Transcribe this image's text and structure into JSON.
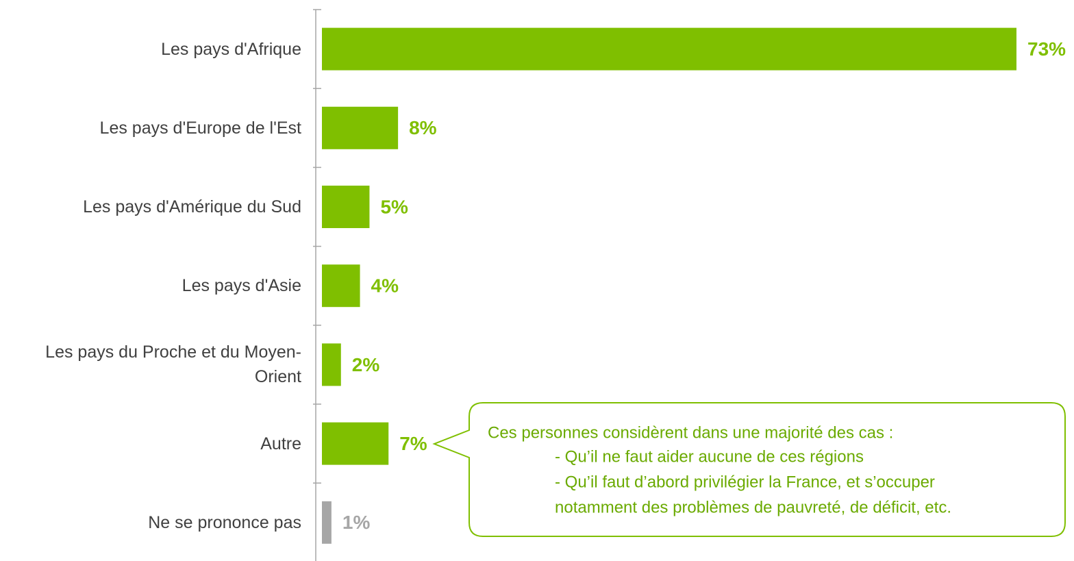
{
  "chart_data": {
    "type": "barh",
    "categories": [
      "Les pays d'Afrique",
      "Les pays d'Europe de l'Est",
      "Les pays d'Amérique du Sud",
      "Les pays d'Asie",
      "Les pays du Proche et du Moyen-Orient",
      "Autre",
      "Ne se prononce pas"
    ],
    "values": [
      73,
      8,
      5,
      4,
      2,
      7,
      1
    ],
    "value_labels": [
      "73%",
      "8%",
      "5%",
      "4%",
      "2%",
      "7%",
      "1%"
    ],
    "colors": [
      "#7fbf00",
      "#7fbf00",
      "#7fbf00",
      "#7fbf00",
      "#7fbf00",
      "#7fbf00",
      "#a6a6a6"
    ],
    "annotation": [
      "Ces personnes considèrent dans une majorité des cas :",
      "- Qu’il ne faut aider aucune de ces régions",
      "- Qu’il faut d’abord privilégier la France, et s’occuper",
      "notamment des problèmes de pauvreté, de déficit, etc."
    ]
  }
}
